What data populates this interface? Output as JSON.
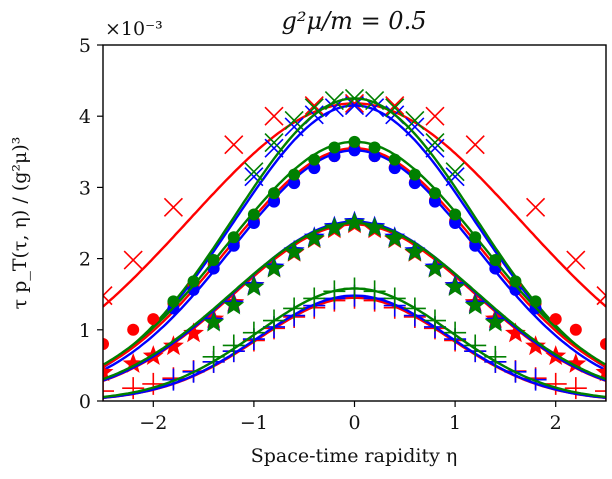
{
  "chart_data": {
    "type": "line",
    "title": "g²μ/m = 0.5",
    "xlabel": "Space-time rapidity η",
    "ylabel": "τ p_T(τ, η) / (g²μ)³",
    "y_offset_label": "×10⁻³",
    "xlim": [
      -2.5,
      2.5
    ],
    "ylim": [
      0,
      5
    ],
    "x_ticks": [
      -2,
      -1,
      0,
      1,
      2
    ],
    "x_tick_labels": [
      "−2",
      "−1",
      "0",
      "1",
      "2"
    ],
    "y_ticks": [
      0,
      1,
      2,
      3,
      4,
      5
    ],
    "y_tick_labels": [
      "0",
      "1",
      "2",
      "3",
      "4",
      "5"
    ],
    "grid": false,
    "legend": "none",
    "colors": {
      "red": "#ff0000",
      "blue": "#0000ff",
      "green": "#008000"
    },
    "series": [
      {
        "color": "red",
        "marker": "x",
        "peak": 4.18,
        "width": 1.65,
        "x": [
          -2.5,
          -2.2,
          -1.8,
          -1.2,
          -0.8,
          -0.4,
          0,
          0.4,
          0.8,
          1.2,
          1.8,
          2.2,
          2.5
        ],
        "values": [
          1.48,
          1.98,
          2.72,
          3.6,
          4.0,
          4.15,
          4.18,
          4.15,
          4.0,
          3.6,
          2.72,
          1.98,
          1.48
        ]
      },
      {
        "color": "blue",
        "marker": "x",
        "peak": 4.15,
        "width": 1.2,
        "x": [
          -1,
          -0.8,
          -0.6,
          -0.4,
          -0.2,
          0,
          0.2,
          0.4,
          0.6,
          0.8,
          1
        ],
        "values": [
          3.15,
          3.55,
          3.85,
          4.02,
          4.12,
          4.15,
          4.12,
          4.02,
          3.85,
          3.55,
          3.15
        ]
      },
      {
        "color": "green",
        "marker": "x",
        "peak": 4.25,
        "width": 1.2,
        "x": [
          -1,
          -0.8,
          -0.6,
          -0.4,
          -0.2,
          0,
          0.2,
          0.4,
          0.6,
          0.8,
          1
        ],
        "values": [
          3.22,
          3.63,
          3.94,
          4.12,
          4.22,
          4.25,
          4.22,
          4.12,
          3.94,
          3.63,
          3.22
        ]
      },
      {
        "color": "red",
        "marker": "circle",
        "peak": 3.55,
        "width": 1.25,
        "x": [
          -2.5,
          -2.2,
          -2,
          -1.8,
          -1.6,
          -1.4,
          -1.2,
          -1,
          -0.8,
          -0.6,
          -0.4,
          -0.2,
          0,
          0.2,
          0.4,
          0.6,
          0.8,
          1,
          1.2,
          1.4,
          1.6,
          1.8,
          2,
          2.2,
          2.5
        ],
        "values": [
          0.8,
          1.0,
          1.15,
          1.37,
          1.63,
          1.92,
          2.22,
          2.53,
          2.82,
          3.07,
          3.28,
          3.44,
          3.55,
          3.44,
          3.28,
          3.07,
          2.82,
          2.53,
          2.22,
          1.92,
          1.63,
          1.37,
          1.15,
          1.0,
          0.8
        ]
      },
      {
        "color": "blue",
        "marker": "circle",
        "peak": 3.52,
        "width": 1.22,
        "x": [
          -1.8,
          -1.6,
          -1.4,
          -1.2,
          -1,
          -0.8,
          -0.6,
          -0.4,
          -0.2,
          0,
          0.2,
          0.4,
          0.6,
          0.8,
          1,
          1.2,
          1.4,
          1.6,
          1.8
        ],
        "values": [
          1.3,
          1.56,
          1.86,
          2.18,
          2.5,
          2.8,
          3.06,
          3.27,
          3.44,
          3.52,
          3.44,
          3.27,
          3.06,
          2.8,
          2.5,
          2.18,
          1.86,
          1.56,
          1.3
        ]
      },
      {
        "color": "green",
        "marker": "circle",
        "peak": 3.64,
        "width": 1.26,
        "x": [
          -1.8,
          -1.6,
          -1.4,
          -1.2,
          -1,
          -0.8,
          -0.6,
          -0.4,
          -0.2,
          0,
          0.2,
          0.4,
          0.6,
          0.8,
          1,
          1.2,
          1.4,
          1.6,
          1.8
        ],
        "values": [
          1.4,
          1.68,
          1.98,
          2.3,
          2.62,
          2.92,
          3.18,
          3.39,
          3.56,
          3.64,
          3.56,
          3.39,
          3.18,
          2.92,
          2.62,
          2.3,
          1.98,
          1.68,
          1.4
        ]
      },
      {
        "color": "red",
        "marker": "star",
        "peak": 2.48,
        "width": 1.2,
        "x": [
          -2.5,
          -2.2,
          -2,
          -1.8,
          -1.6,
          -1.4,
          -1.2,
          -1,
          -0.8,
          -0.6,
          -0.4,
          -0.2,
          0,
          0.2,
          0.4,
          0.6,
          0.8,
          1,
          1.2,
          1.4,
          1.6,
          1.8,
          2,
          2.2,
          2.5
        ],
        "values": [
          0.4,
          0.52,
          0.63,
          0.77,
          0.95,
          1.15,
          1.38,
          1.62,
          1.86,
          2.08,
          2.27,
          2.41,
          2.48,
          2.41,
          2.27,
          2.08,
          1.86,
          1.62,
          1.38,
          1.15,
          0.95,
          0.77,
          0.63,
          0.52,
          0.4
        ]
      },
      {
        "color": "blue",
        "marker": "star",
        "peak": 2.52,
        "width": 1.2,
        "x": [
          -1.4,
          -1.2,
          -1,
          -0.8,
          -0.6,
          -0.4,
          -0.2,
          0,
          0.2,
          0.4,
          0.6,
          0.8,
          1,
          1.2,
          1.4
        ],
        "values": [
          1.12,
          1.36,
          1.62,
          1.88,
          2.11,
          2.3,
          2.45,
          2.52,
          2.45,
          2.3,
          2.11,
          1.88,
          1.62,
          1.36,
          1.12
        ]
      },
      {
        "color": "green",
        "marker": "star",
        "peak": 2.5,
        "width": 1.22,
        "x": [
          -1.4,
          -1.2,
          -1,
          -0.8,
          -0.6,
          -0.4,
          -0.2,
          0,
          0.2,
          0.4,
          0.6,
          0.8,
          1,
          1.2,
          1.4
        ],
        "values": [
          1.1,
          1.34,
          1.6,
          1.86,
          2.09,
          2.28,
          2.43,
          2.5,
          2.43,
          2.28,
          2.09,
          1.86,
          1.6,
          1.34,
          1.1
        ]
      },
      {
        "color": "red",
        "marker": "plus",
        "peak": 1.45,
        "width": 0.95,
        "x": [
          -2.5,
          -2.2,
          -2,
          -1.8,
          -1.6,
          -1.4,
          -1.2,
          -1,
          -0.8,
          -0.6,
          -0.4,
          -0.2,
          0,
          0.2,
          0.4,
          0.6,
          0.8,
          1,
          1.2,
          1.4,
          1.6,
          1.8,
          2,
          2.2,
          2.5
        ],
        "values": [
          0.14,
          0.18,
          0.24,
          0.32,
          0.42,
          0.55,
          0.7,
          0.85,
          1.02,
          1.18,
          1.31,
          1.41,
          1.45,
          1.41,
          1.31,
          1.18,
          1.02,
          0.85,
          0.7,
          0.55,
          0.42,
          0.32,
          0.24,
          0.18,
          0.14
        ]
      },
      {
        "color": "blue",
        "marker": "plus",
        "peak": 1.48,
        "width": 0.95,
        "x": [
          -1.8,
          -1.6,
          -1.4,
          -1.2,
          -1,
          -0.8,
          -0.6,
          -0.4,
          -0.2,
          0,
          0.2,
          0.4,
          0.6,
          0.8,
          1,
          1.2,
          1.4,
          1.6,
          1.8
        ],
        "values": [
          0.3,
          0.41,
          0.55,
          0.7,
          0.87,
          1.04,
          1.2,
          1.34,
          1.44,
          1.48,
          1.44,
          1.34,
          1.2,
          1.04,
          0.87,
          0.7,
          0.55,
          0.41,
          0.3
        ]
      },
      {
        "color": "green",
        "marker": "plus",
        "peak": 1.58,
        "width": 0.97,
        "x": [
          -1.4,
          -1.2,
          -1,
          -0.8,
          -0.6,
          -0.4,
          -0.2,
          0,
          0.2,
          0.4,
          0.6,
          0.8,
          1,
          1.2,
          1.4
        ],
        "values": [
          0.62,
          0.78,
          0.96,
          1.13,
          1.3,
          1.44,
          1.54,
          1.58,
          1.54,
          1.44,
          1.3,
          1.13,
          0.96,
          0.78,
          0.62
        ]
      }
    ]
  }
}
